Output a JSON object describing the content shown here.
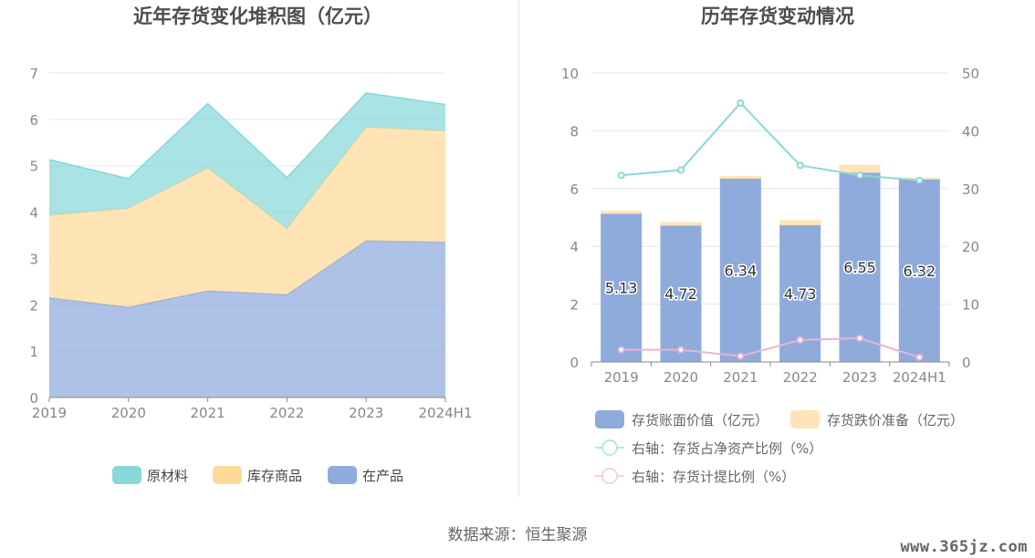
{
  "source_text": "数据来源：恒生聚源",
  "watermark": "www.365jz.com",
  "chart_data": [
    {
      "type": "area",
      "stacked": true,
      "title": "近年存货变化堆积图（亿元）",
      "categories": [
        "2019",
        "2020",
        "2021",
        "2022",
        "2023",
        "2024H1"
      ],
      "ylim": [
        0,
        7
      ],
      "yticks": [
        "0",
        "1",
        "2",
        "3",
        "4",
        "5",
        "6",
        "7"
      ],
      "grid": true,
      "legend_position": "bottom",
      "series": [
        {
          "name": "在产品",
          "color": "#8eabdc",
          "values": [
            2.15,
            1.95,
            2.3,
            2.22,
            3.38,
            3.35
          ]
        },
        {
          "name": "库存商品",
          "color": "#ffd999",
          "values": [
            1.78,
            2.13,
            2.65,
            1.42,
            2.45,
            2.4
          ]
        },
        {
          "name": "原材料",
          "color": "#88d8d8",
          "values": [
            1.2,
            0.64,
            1.39,
            1.1,
            0.74,
            0.57
          ]
        }
      ],
      "legend_order": [
        "原材料",
        "库存商品",
        "在产品"
      ]
    },
    {
      "type": "bar",
      "stacked": true,
      "title": "历年存货变动情况",
      "categories": [
        "2019",
        "2020",
        "2021",
        "2022",
        "2023",
        "2024H1"
      ],
      "ylim": [
        0,
        10
      ],
      "yticks": [
        "0",
        "2",
        "4",
        "6",
        "8",
        "10"
      ],
      "y2lim": [
        0,
        50
      ],
      "y2ticks": [
        "0",
        "10",
        "20",
        "30",
        "40",
        "50"
      ],
      "grid": true,
      "legend_position": "bottom",
      "bar_series": [
        {
          "name": "存货账面价值（亿元）",
          "color": "#8eabdc",
          "values": [
            5.13,
            4.72,
            6.34,
            4.73,
            6.55,
            6.32
          ],
          "labels": [
            "5.13",
            "4.72",
            "6.34",
            "4.73",
            "6.55",
            "6.32"
          ]
        },
        {
          "name": "存货跌价准备（亿元）",
          "color": "#ffe4b8",
          "values": [
            0.1,
            0.12,
            0.1,
            0.18,
            0.28,
            0.06
          ]
        }
      ],
      "line_series": [
        {
          "name": "右轴：存货占净资产比例（%）",
          "color": "#88d8d8",
          "values": [
            32.3,
            33.2,
            44.8,
            34.0,
            32.3,
            31.4
          ]
        },
        {
          "name": "右轴：存货计提比例（%）",
          "color": "#e8b4d4",
          "values": [
            2.1,
            2.1,
            1.0,
            3.8,
            4.1,
            0.8
          ]
        }
      ]
    }
  ]
}
